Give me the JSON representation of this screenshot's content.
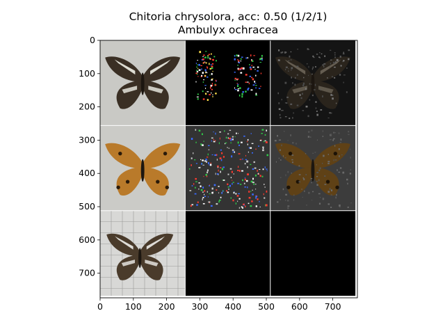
{
  "figure": {
    "title_line1": "Chitoria chrysolora, acc: 0.50 (1/2/1)",
    "title_line2": "Ambulyx ochracea"
  },
  "axes": {
    "x_ticks": [
      "0",
      "100",
      "200",
      "300",
      "400",
      "500",
      "600",
      "700"
    ],
    "y_ticks": [
      "0",
      "100",
      "200",
      "300",
      "400",
      "500",
      "600",
      "700"
    ],
    "x_range": [
      0,
      774
    ],
    "y_range": [
      0,
      774
    ]
  },
  "grid": {
    "rows": 3,
    "cols": 3,
    "tile_size_px": 256,
    "tiles": [
      {
        "row": 0,
        "col": 0,
        "content": "dark brown butterfly specimen photo",
        "bg": "#c9c9c5",
        "wing": "#3a2f24",
        "band": "#efefe6"
      },
      {
        "row": 0,
        "col": 1,
        "content": "saliency map, sparse colored speckles on black",
        "bg": "#000000"
      },
      {
        "row": 0,
        "col": 2,
        "content": "masked butterfly, dimmed",
        "bg": "#141414",
        "wing": "#2a241c"
      },
      {
        "row": 1,
        "col": 0,
        "content": "orange-brown butterfly specimen photo",
        "bg": "#cbcbc7",
        "wing": "#b97a2a"
      },
      {
        "row": 1,
        "col": 1,
        "content": "saliency map, colored speckles on gray",
        "bg": "#333333"
      },
      {
        "row": 1,
        "col": 2,
        "content": "masked orange butterfly, dimmed",
        "bg": "#3c3c3c",
        "wing": "#5f4116"
      },
      {
        "row": 2,
        "col": 0,
        "content": "white-banded brown butterfly on grid paper",
        "bg": "#d8d8d6",
        "wing": "#4a3b2b"
      },
      {
        "row": 2,
        "col": 1,
        "content": "empty black tile",
        "bg": "#000000"
      },
      {
        "row": 2,
        "col": 2,
        "content": "empty black tile",
        "bg": "#000000"
      }
    ]
  }
}
